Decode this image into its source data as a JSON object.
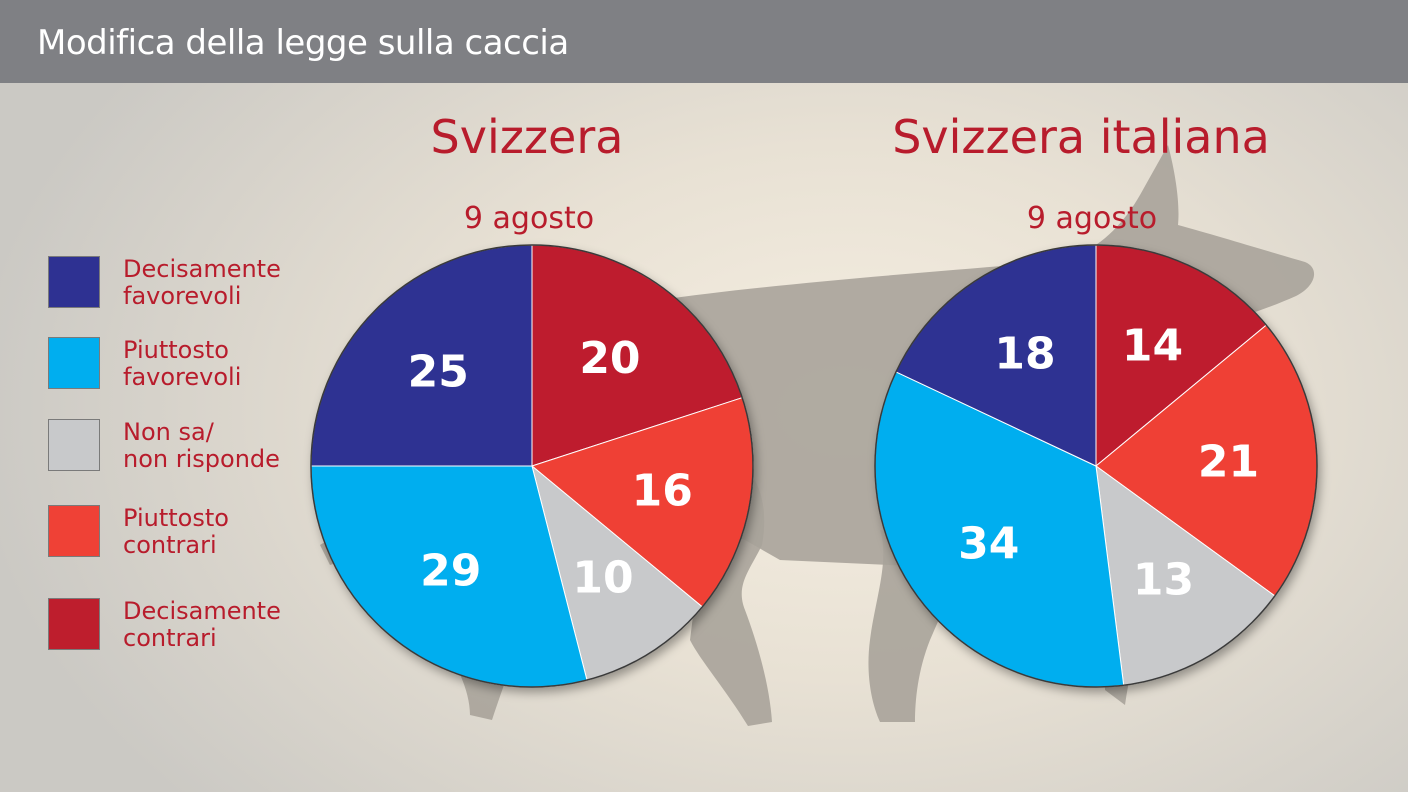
{
  "header": {
    "title": "Modifica della legge sulla caccia"
  },
  "colors": {
    "decisamente_favorevoli": "#2e3192",
    "piuttosto_favorevoli": "#00aeef",
    "non_sa": "#c8c9cb",
    "piuttosto_contrari": "#ef4136",
    "decisamente_contrari": "#be1e2d",
    "accent_text": "#b81c2c",
    "background_dog": "#a8a39a"
  },
  "legend": [
    {
      "label": "Decisamente\nfavorevoli",
      "color": "#2e3192"
    },
    {
      "label": "Piuttosto\nfavorevoli",
      "color": "#00aeef"
    },
    {
      "label": "Non sa/\nnon risponde",
      "color": "#c8c9cb"
    },
    {
      "label": "Piuttosto\ncontrari",
      "color": "#ef4136"
    },
    {
      "label": "Decisamente\ncontrari",
      "color": "#be1e2d"
    }
  ],
  "chart_data": [
    {
      "type": "pie",
      "title": "Svizzera",
      "subtitle": "9 agosto",
      "categories": [
        "Decisamente contrari",
        "Piuttosto contrari",
        "Non sa/non risponde",
        "Piuttosto favorevoli",
        "Decisamente favorevoli"
      ],
      "values": [
        20,
        16,
        10,
        29,
        25
      ]
    },
    {
      "type": "pie",
      "title": "Svizzera italiana",
      "subtitle": "9 agosto",
      "categories": [
        "Decisamente contrari",
        "Piuttosto contrari",
        "Non sa/non risponde",
        "Piuttosto favorevoli",
        "Decisamente favorevoli"
      ],
      "values": [
        14,
        21,
        13,
        34,
        18
      ]
    }
  ]
}
